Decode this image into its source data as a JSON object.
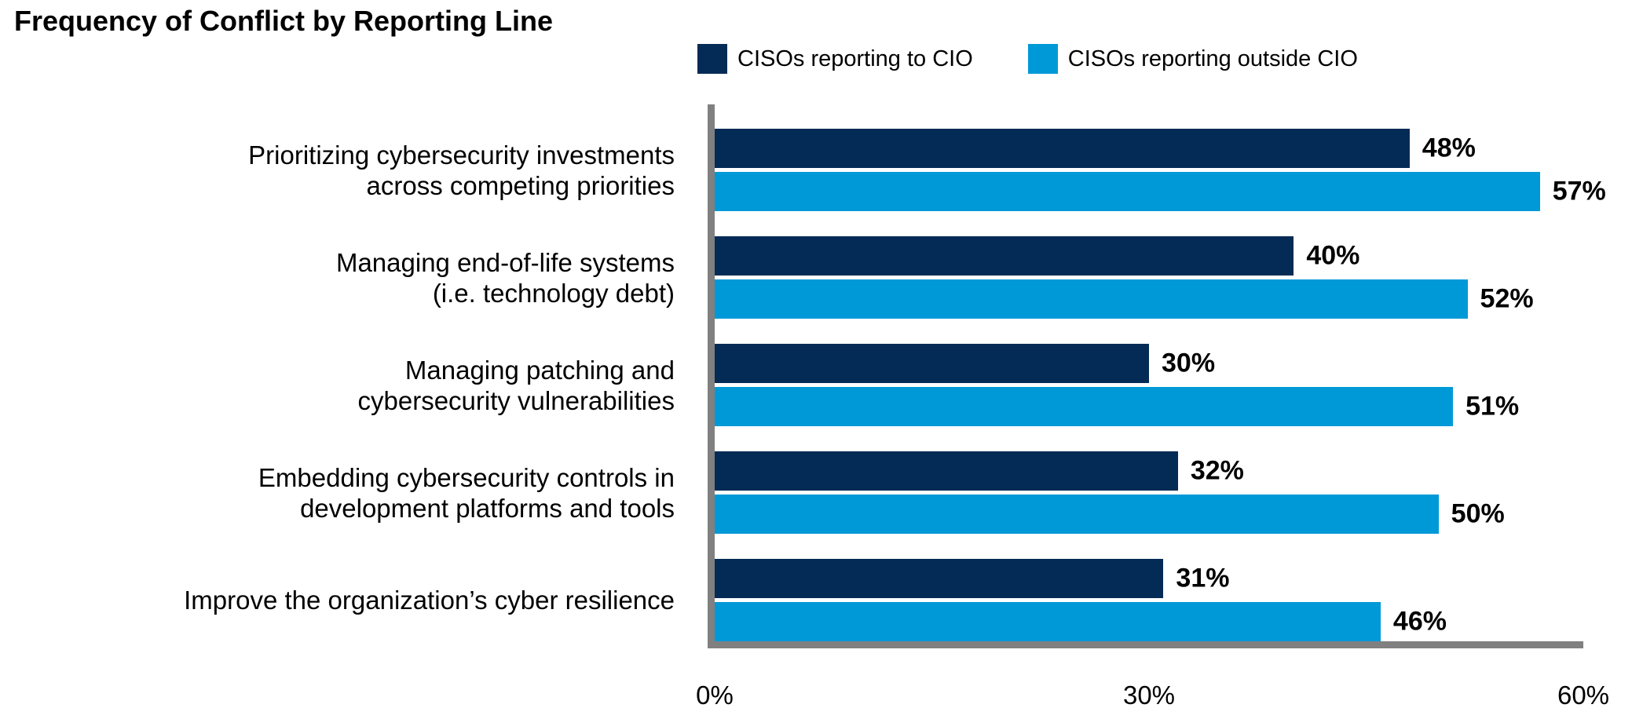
{
  "title": "Frequency of Conflict by Reporting Line",
  "chart_data": {
    "type": "bar",
    "orientation": "horizontal",
    "title": "Frequency of Conflict by Reporting Line",
    "categories": [
      {
        "lines": [
          "Prioritizing cybersecurity investments",
          "across competing priorities"
        ]
      },
      {
        "lines": [
          "Managing end-of-life systems",
          "(i.e. technology debt)"
        ]
      },
      {
        "lines": [
          "Managing patching and",
          "cybersecurity vulnerabilities"
        ]
      },
      {
        "lines": [
          "Embedding cybersecurity controls in",
          "development platforms and tools"
        ]
      },
      {
        "lines": [
          "Improve the organization’s cyber resilience"
        ]
      }
    ],
    "series": [
      {
        "name": "CISOs reporting to CIO",
        "color": "#032B55",
        "values": [
          48,
          40,
          30,
          32,
          31
        ]
      },
      {
        "name": "CISOs reporting outside CIO",
        "color": "#0099D8",
        "values": [
          57,
          52,
          51,
          50,
          46
        ]
      }
    ],
    "value_suffix": "%",
    "xlabel": "",
    "ylabel": "",
    "xlim": [
      0,
      60
    ],
    "xticks": [
      {
        "label": "0%",
        "position_pct": 0
      },
      {
        "label": "30%",
        "position_pct": 50
      },
      {
        "label": "60%",
        "position_pct": 100
      }
    ],
    "legend_position": "top",
    "grid": false,
    "axis_color": "#808080",
    "value_label_color": "#000000",
    "text_color": "#000000"
  }
}
